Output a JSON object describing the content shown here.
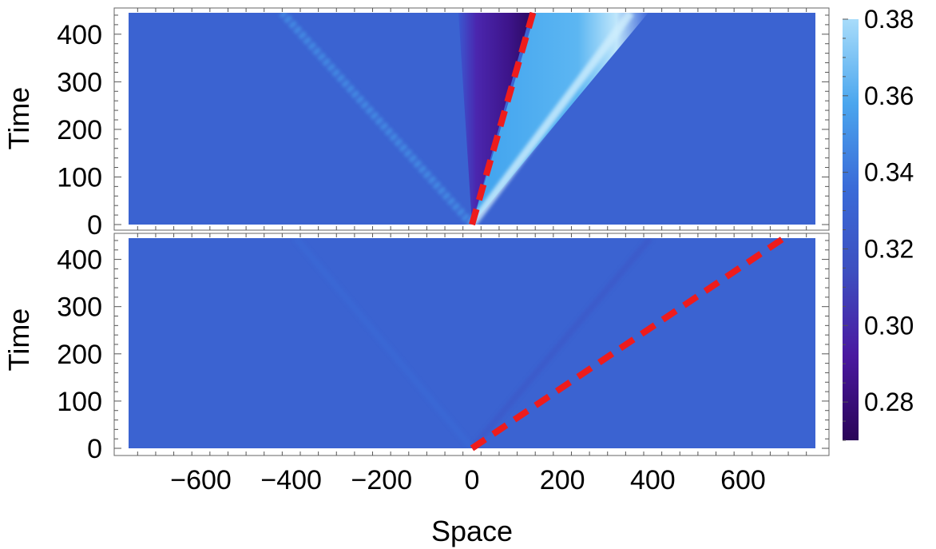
{
  "chart_data": [
    {
      "type": "heatmap",
      "panel": "top",
      "xlabel": "",
      "ylabel": "Time",
      "xlim": [
        -760,
        760
      ],
      "ylim": [
        0,
        445
      ],
      "yticks": [
        0,
        100,
        200,
        300,
        400
      ],
      "xticks": [],
      "background_value": 0.33,
      "features": [
        {
          "kind": "fan-region",
          "value_range": [
            0.27,
            0.31
          ],
          "x_at_t445": [
            -30,
            130
          ],
          "x_at_t0": [
            0,
            0
          ]
        },
        {
          "kind": "fan-region",
          "value_range": [
            0.35,
            0.38
          ],
          "x_at_t445": [
            140,
            390
          ],
          "x_at_t0": [
            0,
            0
          ]
        },
        {
          "kind": "wave-front",
          "value": 0.35,
          "x_at_t0": 0,
          "x_at_t445": -420
        }
      ],
      "overlay_line": {
        "style": "dashed",
        "color": "#ee1c1c",
        "points": [
          [
            0,
            0
          ],
          [
            135,
            445
          ]
        ]
      }
    },
    {
      "type": "heatmap",
      "panel": "bottom",
      "xlabel": "Space",
      "ylabel": "Time",
      "xlim": [
        -760,
        760
      ],
      "ylim": [
        0,
        445
      ],
      "yticks": [
        0,
        100,
        200,
        300,
        400
      ],
      "xticks": [
        -600,
        -400,
        -200,
        0,
        200,
        400,
        600
      ],
      "background_value": 0.33,
      "features": [
        {
          "kind": "wave-front",
          "value": 0.32,
          "x_at_t0": 0,
          "x_at_t445": 395
        },
        {
          "kind": "wave-front",
          "value": 0.335,
          "x_at_t0": 0,
          "x_at_t445": -390
        }
      ],
      "overlay_line": {
        "style": "dashed",
        "color": "#ee1c1c",
        "points": [
          [
            0,
            0
          ],
          [
            690,
            445
          ]
        ]
      }
    }
  ],
  "colorbar": {
    "min": 0.27,
    "max": 0.38,
    "ticks": [
      0.28,
      0.3,
      0.32,
      0.34,
      0.36,
      0.38
    ],
    "colors": [
      "#2a0558",
      "#4a18a0",
      "#3d4fc0",
      "#3a6bd8",
      "#4ba6ee",
      "#a8dcfa"
    ]
  }
}
